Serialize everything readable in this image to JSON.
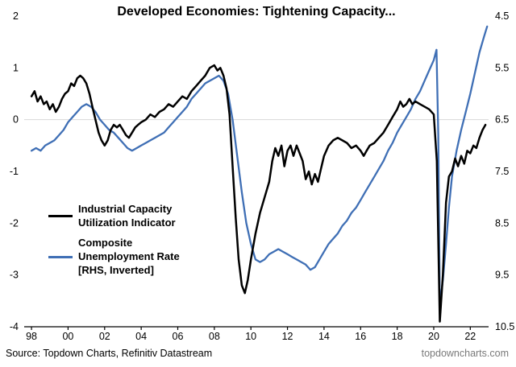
{
  "title": "Developed Economies: Tightening Capacity...",
  "source": "Source: Topdown Charts, Refinitiv Datastream",
  "watermark": "topdowncharts.com",
  "colors": {
    "black_series": "#000000",
    "blue_series": "#3f6fb5",
    "grid": "#d8d8d8",
    "axis": "#000000",
    "watermark_gray": "#7a7a7a"
  },
  "chart_data": {
    "type": "line",
    "title": "Developed Economies: Tightening Capacity...",
    "xlabel": "",
    "ylabel_left": "",
    "ylabel_right": "",
    "x_range": [
      1997.6,
      2023.0
    ],
    "x_tick_labels": [
      "98",
      "00",
      "02",
      "04",
      "06",
      "08",
      "10",
      "12",
      "14",
      "16",
      "18",
      "20",
      "22"
    ],
    "x_tick_values": [
      1998,
      2000,
      2002,
      2004,
      2006,
      2008,
      2010,
      2012,
      2014,
      2016,
      2018,
      2020,
      2022
    ],
    "left_axis": {
      "range": [
        -4,
        2
      ],
      "tick_values": [
        2,
        1,
        0,
        -1,
        -2,
        -3,
        -4
      ],
      "tick_labels": [
        "2",
        "1",
        "0",
        "-1",
        "-2",
        "-3",
        "-4"
      ]
    },
    "right_axis": {
      "range": [
        4.5,
        10.5
      ],
      "inverted": true,
      "tick_values": [
        4.5,
        5.5,
        6.5,
        7.5,
        8.5,
        9.5,
        10.5
      ],
      "tick_labels": [
        "4.5",
        "5.5",
        "6.5",
        "7.5",
        "8.5",
        "9.5",
        "10.5"
      ]
    },
    "gridline_at_left_value": 0,
    "legend": [
      {
        "name": "Industrial Capacity Utilization Indicator",
        "lines": [
          "Industrial Capacity",
          "Utilization Indicator"
        ],
        "color": "#000000"
      },
      {
        "name": "Composite Unemployment Rate [RHS, Inverted]",
        "lines": [
          "Composite",
          "Unemployment Rate",
          "[RHS, Inverted]"
        ],
        "color": "#3f6fb5"
      }
    ],
    "series": [
      {
        "name": "Composite Unemployment Rate [RHS, Inverted]",
        "axis": "right",
        "color": "#3f6fb5",
        "points": [
          [
            1998.0,
            7.1
          ],
          [
            1998.25,
            7.05
          ],
          [
            1998.5,
            7.1
          ],
          [
            1998.75,
            7.0
          ],
          [
            1999.0,
            6.95
          ],
          [
            1999.25,
            6.9
          ],
          [
            1999.5,
            6.8
          ],
          [
            1999.75,
            6.7
          ],
          [
            2000.0,
            6.55
          ],
          [
            2000.25,
            6.45
          ],
          [
            2000.5,
            6.35
          ],
          [
            2000.75,
            6.25
          ],
          [
            2001.0,
            6.2
          ],
          [
            2001.25,
            6.25
          ],
          [
            2001.5,
            6.35
          ],
          [
            2001.75,
            6.5
          ],
          [
            2002.0,
            6.6
          ],
          [
            2002.25,
            6.7
          ],
          [
            2002.5,
            6.75
          ],
          [
            2002.75,
            6.85
          ],
          [
            2003.0,
            6.95
          ],
          [
            2003.25,
            7.05
          ],
          [
            2003.5,
            7.1
          ],
          [
            2003.75,
            7.05
          ],
          [
            2004.0,
            7.0
          ],
          [
            2004.25,
            6.95
          ],
          [
            2004.5,
            6.9
          ],
          [
            2004.75,
            6.85
          ],
          [
            2005.0,
            6.8
          ],
          [
            2005.25,
            6.75
          ],
          [
            2005.5,
            6.65
          ],
          [
            2005.75,
            6.55
          ],
          [
            2006.0,
            6.45
          ],
          [
            2006.25,
            6.35
          ],
          [
            2006.5,
            6.25
          ],
          [
            2006.75,
            6.1
          ],
          [
            2007.0,
            6.0
          ],
          [
            2007.25,
            5.9
          ],
          [
            2007.5,
            5.8
          ],
          [
            2007.75,
            5.75
          ],
          [
            2008.0,
            5.7
          ],
          [
            2008.25,
            5.65
          ],
          [
            2008.5,
            5.75
          ],
          [
            2008.75,
            6.0
          ],
          [
            2009.0,
            6.5
          ],
          [
            2009.25,
            7.2
          ],
          [
            2009.5,
            7.9
          ],
          [
            2009.75,
            8.5
          ],
          [
            2010.0,
            8.9
          ],
          [
            2010.25,
            9.2
          ],
          [
            2010.5,
            9.25
          ],
          [
            2010.75,
            9.2
          ],
          [
            2011.0,
            9.1
          ],
          [
            2011.25,
            9.05
          ],
          [
            2011.5,
            9.0
          ],
          [
            2011.75,
            9.05
          ],
          [
            2012.0,
            9.1
          ],
          [
            2012.25,
            9.15
          ],
          [
            2012.5,
            9.2
          ],
          [
            2012.75,
            9.25
          ],
          [
            2013.0,
            9.3
          ],
          [
            2013.25,
            9.4
          ],
          [
            2013.5,
            9.35
          ],
          [
            2013.75,
            9.2
          ],
          [
            2014.0,
            9.05
          ],
          [
            2014.25,
            8.9
          ],
          [
            2014.5,
            8.8
          ],
          [
            2014.75,
            8.7
          ],
          [
            2015.0,
            8.55
          ],
          [
            2015.25,
            8.45
          ],
          [
            2015.5,
            8.3
          ],
          [
            2015.75,
            8.2
          ],
          [
            2016.0,
            8.05
          ],
          [
            2016.25,
            7.9
          ],
          [
            2016.5,
            7.75
          ],
          [
            2016.75,
            7.6
          ],
          [
            2017.0,
            7.45
          ],
          [
            2017.25,
            7.3
          ],
          [
            2017.5,
            7.1
          ],
          [
            2017.75,
            6.95
          ],
          [
            2018.0,
            6.75
          ],
          [
            2018.25,
            6.6
          ],
          [
            2018.5,
            6.45
          ],
          [
            2018.75,
            6.3
          ],
          [
            2019.0,
            6.1
          ],
          [
            2019.25,
            5.95
          ],
          [
            2019.5,
            5.75
          ],
          [
            2019.75,
            5.55
          ],
          [
            2020.0,
            5.35
          ],
          [
            2020.15,
            5.15
          ],
          [
            2020.25,
            6.8
          ],
          [
            2020.33,
            10.1
          ],
          [
            2020.5,
            9.6
          ],
          [
            2020.67,
            8.9
          ],
          [
            2020.83,
            8.2
          ],
          [
            2021.0,
            7.6
          ],
          [
            2021.25,
            7.1
          ],
          [
            2021.5,
            6.7
          ],
          [
            2021.75,
            6.35
          ],
          [
            2022.0,
            6.0
          ],
          [
            2022.25,
            5.6
          ],
          [
            2022.5,
            5.2
          ],
          [
            2022.75,
            4.9
          ],
          [
            2022.92,
            4.7
          ]
        ]
      },
      {
        "name": "Industrial Capacity Utilization Indicator",
        "axis": "left",
        "color": "#000000",
        "points": [
          [
            1998.0,
            0.45
          ],
          [
            1998.17,
            0.55
          ],
          [
            1998.33,
            0.35
          ],
          [
            1998.5,
            0.45
          ],
          [
            1998.67,
            0.3
          ],
          [
            1998.83,
            0.35
          ],
          [
            1999.0,
            0.2
          ],
          [
            1999.17,
            0.3
          ],
          [
            1999.33,
            0.15
          ],
          [
            1999.5,
            0.25
          ],
          [
            1999.67,
            0.4
          ],
          [
            1999.83,
            0.5
          ],
          [
            2000.0,
            0.55
          ],
          [
            2000.17,
            0.7
          ],
          [
            2000.33,
            0.65
          ],
          [
            2000.5,
            0.8
          ],
          [
            2000.67,
            0.85
          ],
          [
            2000.83,
            0.8
          ],
          [
            2001.0,
            0.7
          ],
          [
            2001.17,
            0.5
          ],
          [
            2001.33,
            0.25
          ],
          [
            2001.5,
            0.0
          ],
          [
            2001.67,
            -0.25
          ],
          [
            2001.83,
            -0.4
          ],
          [
            2002.0,
            -0.5
          ],
          [
            2002.17,
            -0.4
          ],
          [
            2002.33,
            -0.2
          ],
          [
            2002.5,
            -0.1
          ],
          [
            2002.67,
            -0.15
          ],
          [
            2002.83,
            -0.1
          ],
          [
            2003.0,
            -0.2
          ],
          [
            2003.17,
            -0.3
          ],
          [
            2003.33,
            -0.35
          ],
          [
            2003.5,
            -0.25
          ],
          [
            2003.67,
            -0.15
          ],
          [
            2003.83,
            -0.1
          ],
          [
            2004.0,
            -0.05
          ],
          [
            2004.25,
            0.0
          ],
          [
            2004.5,
            0.1
          ],
          [
            2004.75,
            0.05
          ],
          [
            2005.0,
            0.15
          ],
          [
            2005.25,
            0.2
          ],
          [
            2005.5,
            0.3
          ],
          [
            2005.75,
            0.25
          ],
          [
            2006.0,
            0.35
          ],
          [
            2006.25,
            0.45
          ],
          [
            2006.5,
            0.4
          ],
          [
            2006.75,
            0.55
          ],
          [
            2007.0,
            0.65
          ],
          [
            2007.25,
            0.75
          ],
          [
            2007.5,
            0.85
          ],
          [
            2007.75,
            1.0
          ],
          [
            2008.0,
            1.05
          ],
          [
            2008.17,
            0.95
          ],
          [
            2008.33,
            1.0
          ],
          [
            2008.5,
            0.85
          ],
          [
            2008.67,
            0.6
          ],
          [
            2008.83,
            0.1
          ],
          [
            2009.0,
            -0.9
          ],
          [
            2009.17,
            -1.9
          ],
          [
            2009.33,
            -2.7
          ],
          [
            2009.5,
            -3.2
          ],
          [
            2009.67,
            -3.35
          ],
          [
            2009.83,
            -3.1
          ],
          [
            2010.0,
            -2.7
          ],
          [
            2010.25,
            -2.2
          ],
          [
            2010.5,
            -1.8
          ],
          [
            2010.75,
            -1.5
          ],
          [
            2011.0,
            -1.2
          ],
          [
            2011.17,
            -0.8
          ],
          [
            2011.33,
            -0.55
          ],
          [
            2011.5,
            -0.7
          ],
          [
            2011.67,
            -0.5
          ],
          [
            2011.83,
            -0.9
          ],
          [
            2012.0,
            -0.6
          ],
          [
            2012.17,
            -0.5
          ],
          [
            2012.33,
            -0.7
          ],
          [
            2012.5,
            -0.5
          ],
          [
            2012.67,
            -0.65
          ],
          [
            2012.83,
            -0.8
          ],
          [
            2013.0,
            -1.15
          ],
          [
            2013.17,
            -1.0
          ],
          [
            2013.33,
            -1.25
          ],
          [
            2013.5,
            -1.05
          ],
          [
            2013.67,
            -1.2
          ],
          [
            2013.83,
            -0.95
          ],
          [
            2014.0,
            -0.7
          ],
          [
            2014.25,
            -0.5
          ],
          [
            2014.5,
            -0.4
          ],
          [
            2014.75,
            -0.35
          ],
          [
            2015.0,
            -0.4
          ],
          [
            2015.25,
            -0.45
          ],
          [
            2015.5,
            -0.55
          ],
          [
            2015.75,
            -0.5
          ],
          [
            2016.0,
            -0.6
          ],
          [
            2016.17,
            -0.7
          ],
          [
            2016.33,
            -0.6
          ],
          [
            2016.5,
            -0.5
          ],
          [
            2016.75,
            -0.45
          ],
          [
            2017.0,
            -0.35
          ],
          [
            2017.25,
            -0.25
          ],
          [
            2017.5,
            -0.1
          ],
          [
            2017.75,
            0.05
          ],
          [
            2018.0,
            0.2
          ],
          [
            2018.17,
            0.35
          ],
          [
            2018.33,
            0.25
          ],
          [
            2018.5,
            0.3
          ],
          [
            2018.67,
            0.4
          ],
          [
            2018.83,
            0.3
          ],
          [
            2019.0,
            0.35
          ],
          [
            2019.25,
            0.3
          ],
          [
            2019.5,
            0.25
          ],
          [
            2019.75,
            0.2
          ],
          [
            2020.0,
            0.1
          ],
          [
            2020.17,
            -0.8
          ],
          [
            2020.33,
            -3.9
          ],
          [
            2020.5,
            -3.0
          ],
          [
            2020.67,
            -1.6
          ],
          [
            2020.83,
            -1.1
          ],
          [
            2021.0,
            -1.0
          ],
          [
            2021.17,
            -0.75
          ],
          [
            2021.33,
            -0.9
          ],
          [
            2021.5,
            -0.7
          ],
          [
            2021.67,
            -0.85
          ],
          [
            2021.83,
            -0.6
          ],
          [
            2022.0,
            -0.65
          ],
          [
            2022.17,
            -0.5
          ],
          [
            2022.33,
            -0.55
          ],
          [
            2022.5,
            -0.35
          ],
          [
            2022.67,
            -0.2
          ],
          [
            2022.83,
            -0.1
          ]
        ]
      }
    ]
  }
}
